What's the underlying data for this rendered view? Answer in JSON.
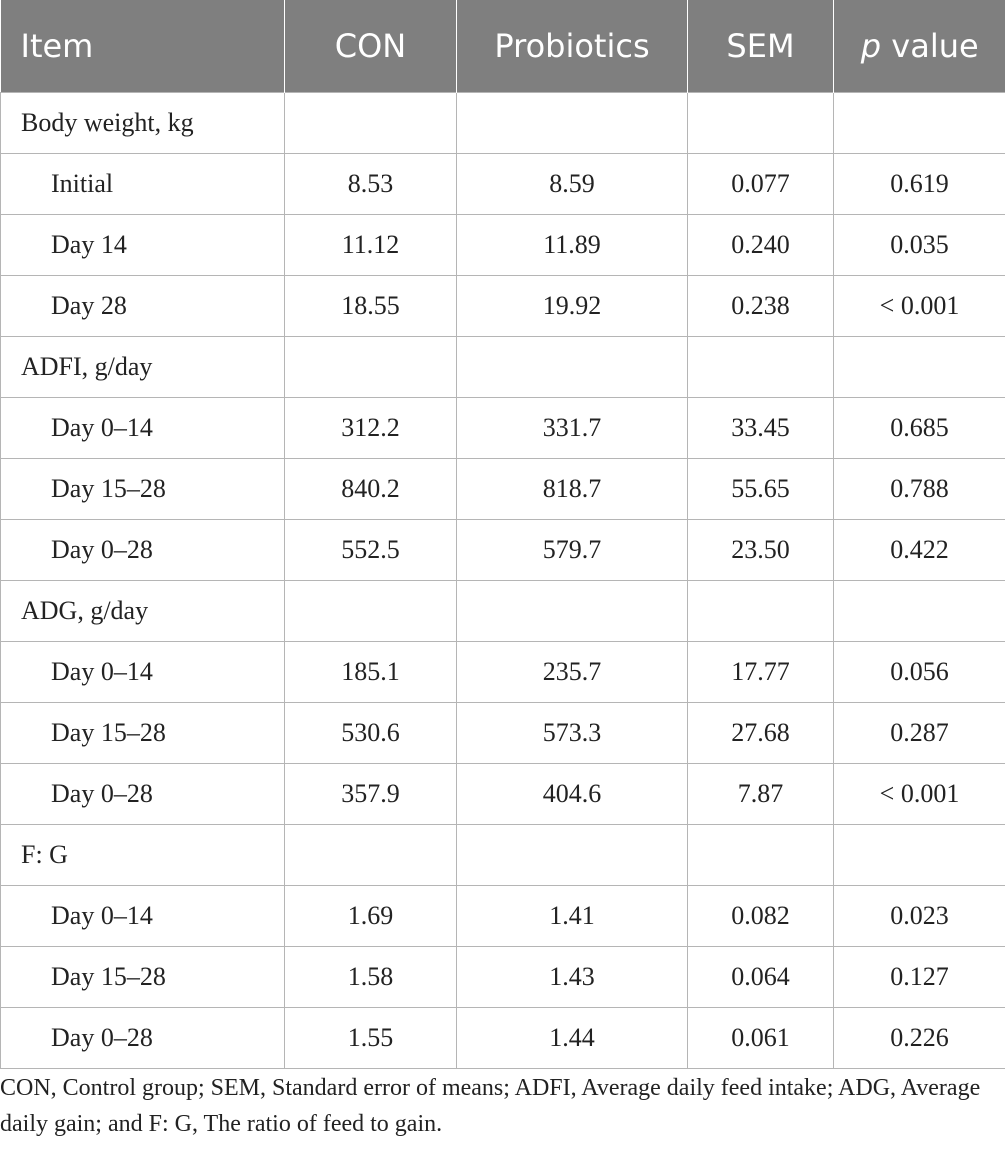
{
  "table": {
    "headers": {
      "item": "Item",
      "con": "CON",
      "probiotics": "Probiotics",
      "sem": "SEM",
      "p_italic": "p",
      "p_rest": " value"
    },
    "groups": [
      {
        "label": "Body weight, kg",
        "rows": [
          {
            "label": "Initial",
            "con": "8.53",
            "probiotics": "8.59",
            "sem": "0.077",
            "p": "0.619"
          },
          {
            "label": "Day 14",
            "con": "11.12",
            "probiotics": "11.89",
            "sem": "0.240",
            "p": "0.035"
          },
          {
            "label": "Day 28",
            "con": "18.55",
            "probiotics": "19.92",
            "sem": "0.238",
            "p": "< 0.001"
          }
        ]
      },
      {
        "label": "ADFI, g/day",
        "rows": [
          {
            "label": "Day 0–14",
            "con": "312.2",
            "probiotics": "331.7",
            "sem": "33.45",
            "p": "0.685"
          },
          {
            "label": "Day 15–28",
            "con": "840.2",
            "probiotics": "818.7",
            "sem": "55.65",
            "p": "0.788"
          },
          {
            "label": "Day 0–28",
            "con": "552.5",
            "probiotics": "579.7",
            "sem": "23.50",
            "p": "0.422"
          }
        ]
      },
      {
        "label": "ADG, g/day",
        "rows": [
          {
            "label": "Day 0–14",
            "con": "185.1",
            "probiotics": "235.7",
            "sem": "17.77",
            "p": "0.056"
          },
          {
            "label": "Day 15–28",
            "con": "530.6",
            "probiotics": "573.3",
            "sem": "27.68",
            "p": "0.287"
          },
          {
            "label": "Day 0–28",
            "con": "357.9",
            "probiotics": "404.6",
            "sem": "7.87",
            "p": "< 0.001"
          }
        ]
      },
      {
        "label": "F: G",
        "rows": [
          {
            "label": "Day 0–14",
            "con": "1.69",
            "probiotics": "1.41",
            "sem": "0.082",
            "p": "0.023"
          },
          {
            "label": "Day 15–28",
            "con": "1.58",
            "probiotics": "1.43",
            "sem": "0.064",
            "p": "0.127"
          },
          {
            "label": "Day 0–28",
            "con": "1.55",
            "probiotics": "1.44",
            "sem": "0.061",
            "p": "0.226"
          }
        ]
      }
    ]
  },
  "footnote": "CON, Control group; SEM, Standard error of means; ADFI, Average daily feed intake; ADG, Average daily gain; and F: G, The ratio of feed to gain.",
  "colors": {
    "header_bg": "#7f7f7f",
    "header_text": "#ffffff",
    "grid": "#b5b5b5",
    "text": "#222222"
  }
}
